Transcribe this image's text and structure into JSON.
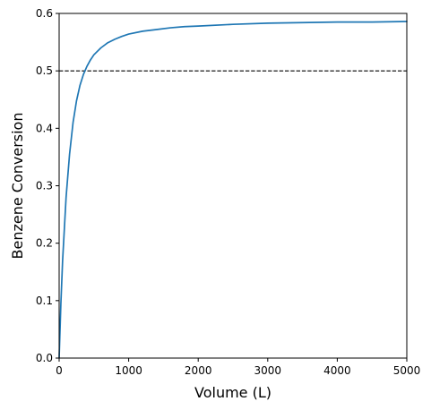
{
  "chart_data": {
    "type": "line",
    "xlabel": "Volume (L)",
    "ylabel": "Benzene Conversion",
    "xlim": [
      0,
      5000
    ],
    "ylim": [
      0,
      0.6
    ],
    "x_ticks": [
      0,
      1000,
      2000,
      3000,
      4000,
      5000
    ],
    "y_ticks": [
      0.0,
      0.1,
      0.2,
      0.3,
      0.4,
      0.5,
      0.6
    ],
    "x_tick_labels": [
      "0",
      "1000",
      "2000",
      "3000",
      "4000",
      "5000"
    ],
    "y_tick_labels": [
      "0.0",
      "0.1",
      "0.2",
      "0.3",
      "0.4",
      "0.5",
      "0.6"
    ],
    "grid": false,
    "legend": "none",
    "series": [
      {
        "color": "#1f77b4",
        "x": [
          0,
          25,
          50,
          100,
          150,
          200,
          250,
          300,
          350,
          400,
          450,
          500,
          600,
          700,
          800,
          900,
          1000,
          1200,
          1400,
          1600,
          1800,
          2000,
          2500,
          3000,
          3500,
          4000,
          4500,
          5000
        ],
        "y": [
          0.0,
          0.095,
          0.17,
          0.28,
          0.355,
          0.41,
          0.448,
          0.475,
          0.494,
          0.508,
          0.519,
          0.528,
          0.54,
          0.549,
          0.555,
          0.56,
          0.564,
          0.569,
          0.572,
          0.575,
          0.577,
          0.578,
          0.581,
          0.583,
          0.584,
          0.585,
          0.585,
          0.586
        ]
      }
    ],
    "reference_lines": [
      {
        "orientation": "horizontal",
        "y": 0.5,
        "style": "dashed",
        "color": "#000000"
      }
    ]
  }
}
